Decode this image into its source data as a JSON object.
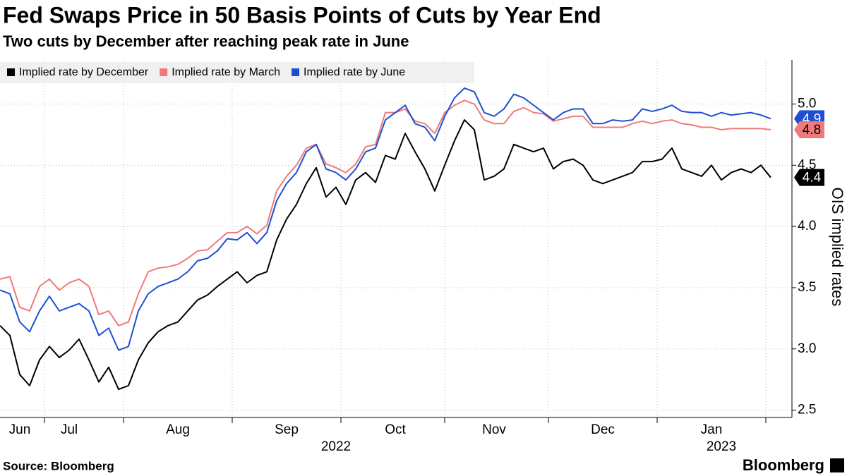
{
  "chart_data": {
    "type": "line",
    "title": "Fed Swaps Price in 50 Basis Points of Cuts by Year End",
    "subtitle": "Two cuts by December after reaching peak rate in June",
    "y_axis_label": "OIS implied rates",
    "source": "Source: Bloomberg",
    "brand": "Bloomberg",
    "year_labels": [
      {
        "label": "2022",
        "category": 34
      },
      {
        "label": "2023",
        "category": 73
      }
    ],
    "categories": [
      null,
      null,
      "Jun",
      null,
      null,
      null,
      null,
      "Jul",
      null,
      null,
      null,
      null,
      null,
      null,
      null,
      null,
      null,
      null,
      "Aug",
      null,
      null,
      null,
      null,
      null,
      null,
      null,
      null,
      null,
      null,
      "Sep",
      null,
      null,
      null,
      null,
      null,
      null,
      null,
      null,
      null,
      null,
      "Oct",
      null,
      null,
      null,
      null,
      null,
      null,
      null,
      null,
      null,
      "Nov",
      null,
      null,
      null,
      null,
      null,
      null,
      null,
      null,
      null,
      null,
      "Dec",
      null,
      null,
      null,
      null,
      null,
      null,
      null,
      null,
      null,
      null,
      "Jan",
      null,
      null,
      null,
      null,
      null,
      null
    ],
    "series": [
      {
        "name": "Implied rate by December",
        "color": "#000000",
        "label_color": "#ffffff",
        "end_label": "4.4",
        "values": [
          3.19,
          3.11,
          2.79,
          2.7,
          2.91,
          3.02,
          2.93,
          2.99,
          3.08,
          2.91,
          2.73,
          2.85,
          2.67,
          2.7,
          2.91,
          3.05,
          3.14,
          3.19,
          3.22,
          3.31,
          3.4,
          3.44,
          3.51,
          3.57,
          3.63,
          3.54,
          3.6,
          3.63,
          3.89,
          4.06,
          4.18,
          4.35,
          4.48,
          4.24,
          4.32,
          4.18,
          4.38,
          4.44,
          4.36,
          4.58,
          4.55,
          4.76,
          4.61,
          4.47,
          4.29,
          4.5,
          4.7,
          4.87,
          4.79,
          4.38,
          4.41,
          4.47,
          4.67,
          4.64,
          4.61,
          4.64,
          4.47,
          4.53,
          4.55,
          4.5,
          4.38,
          4.35,
          4.38,
          4.41,
          4.44,
          4.53,
          4.53,
          4.55,
          4.64,
          4.47,
          4.44,
          4.41,
          4.5,
          4.38,
          4.44,
          4.47,
          4.44,
          4.5,
          4.4
        ]
      },
      {
        "name": "Implied rate by March",
        "color": "#f07a7a",
        "label_color": "#000000",
        "end_label": "4.8",
        "values": [
          3.57,
          3.59,
          3.34,
          3.31,
          3.51,
          3.57,
          3.48,
          3.54,
          3.57,
          3.51,
          3.28,
          3.31,
          3.19,
          3.22,
          3.45,
          3.63,
          3.66,
          3.67,
          3.69,
          3.74,
          3.8,
          3.81,
          3.88,
          3.95,
          3.95,
          4.0,
          3.94,
          4.01,
          4.29,
          4.41,
          4.5,
          4.64,
          4.67,
          4.51,
          4.48,
          4.44,
          4.51,
          4.65,
          4.67,
          4.93,
          4.93,
          4.96,
          4.86,
          4.84,
          4.76,
          4.93,
          4.99,
          5.03,
          5.0,
          4.87,
          4.84,
          4.84,
          4.94,
          4.97,
          4.93,
          4.92,
          4.86,
          4.88,
          4.9,
          4.9,
          4.81,
          4.81,
          4.81,
          4.81,
          4.84,
          4.86,
          4.84,
          4.86,
          4.87,
          4.84,
          4.83,
          4.81,
          4.81,
          4.79,
          4.8,
          4.8,
          4.8,
          4.8,
          4.79
        ]
      },
      {
        "name": "Implied rate by June",
        "color": "#1f4fd1",
        "label_color": "#ffffff",
        "end_label": "4.9",
        "values": [
          3.48,
          3.45,
          3.22,
          3.14,
          3.31,
          3.43,
          3.31,
          3.34,
          3.37,
          3.31,
          3.11,
          3.17,
          2.99,
          3.02,
          3.31,
          3.45,
          3.51,
          3.54,
          3.57,
          3.63,
          3.72,
          3.74,
          3.8,
          3.9,
          3.89,
          3.95,
          3.86,
          3.95,
          4.21,
          4.35,
          4.44,
          4.61,
          4.67,
          4.47,
          4.44,
          4.38,
          4.47,
          4.61,
          4.64,
          4.87,
          4.93,
          4.99,
          4.84,
          4.81,
          4.7,
          4.9,
          5.05,
          5.13,
          5.1,
          4.93,
          4.9,
          4.96,
          5.08,
          5.05,
          4.99,
          4.93,
          4.87,
          4.93,
          4.96,
          4.96,
          4.84,
          4.84,
          4.87,
          4.86,
          4.87,
          4.96,
          4.94,
          4.96,
          4.99,
          4.94,
          4.93,
          4.93,
          4.9,
          4.93,
          4.91,
          4.92,
          4.93,
          4.91,
          4.88
        ]
      }
    ],
    "ylim": [
      2.44,
      5.36
    ],
    "yticks": [
      2.5,
      {
        "value": 3,
        "label": "3.0"
      },
      3.5,
      {
        "value": 4,
        "label": "4.0"
      },
      4.5,
      {
        "value": 5,
        "label": "5.0"
      }
    ],
    "grid": true,
    "legend": "top-left"
  }
}
